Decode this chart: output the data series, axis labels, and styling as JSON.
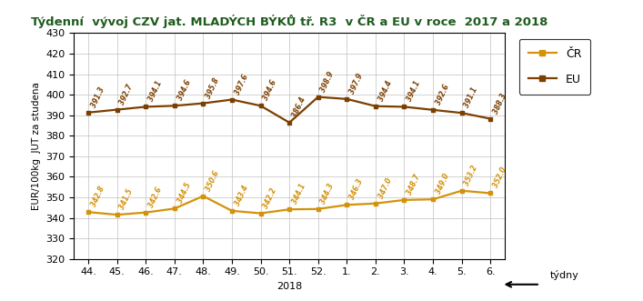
{
  "title": "Týdenní  vývoj CZV jat. MLADÝCH BÝKŮ tř. R3  v ČR a EU v roce  2017 a 2018",
  "xlabel": "2018",
  "ylabel": "EUR/100kg  JUT za studena",
  "x_labels": [
    "44.",
    "45.",
    "46.",
    "47.",
    "48.",
    "49.",
    "50.",
    "51.",
    "52.",
    "1.",
    "2.",
    "3.",
    "4.",
    "5.",
    "6."
  ],
  "x_label_note": "týdny",
  "eu_values": [
    391.3,
    392.7,
    394.1,
    394.6,
    395.8,
    397.6,
    394.6,
    386.4,
    398.9,
    397.9,
    394.4,
    394.1,
    392.6,
    391.1,
    388.3
  ],
  "cr_values": [
    342.8,
    341.5,
    342.6,
    344.5,
    350.6,
    343.4,
    342.2,
    344.1,
    344.3,
    346.3,
    347.0,
    348.7,
    349.0,
    353.2,
    352.0
  ],
  "eu_color": "#7B3F00",
  "cr_color": "#D4920A",
  "title_color": "#1F5C1F",
  "ylim_min": 320,
  "ylim_max": 430,
  "yticks": [
    320,
    330,
    340,
    350,
    360,
    370,
    380,
    390,
    400,
    410,
    420,
    430
  ],
  "legend_cr": "ČR",
  "legend_eu": "EU",
  "bg_color": "#FFFFFF",
  "grid_color": "#C0C0C0"
}
